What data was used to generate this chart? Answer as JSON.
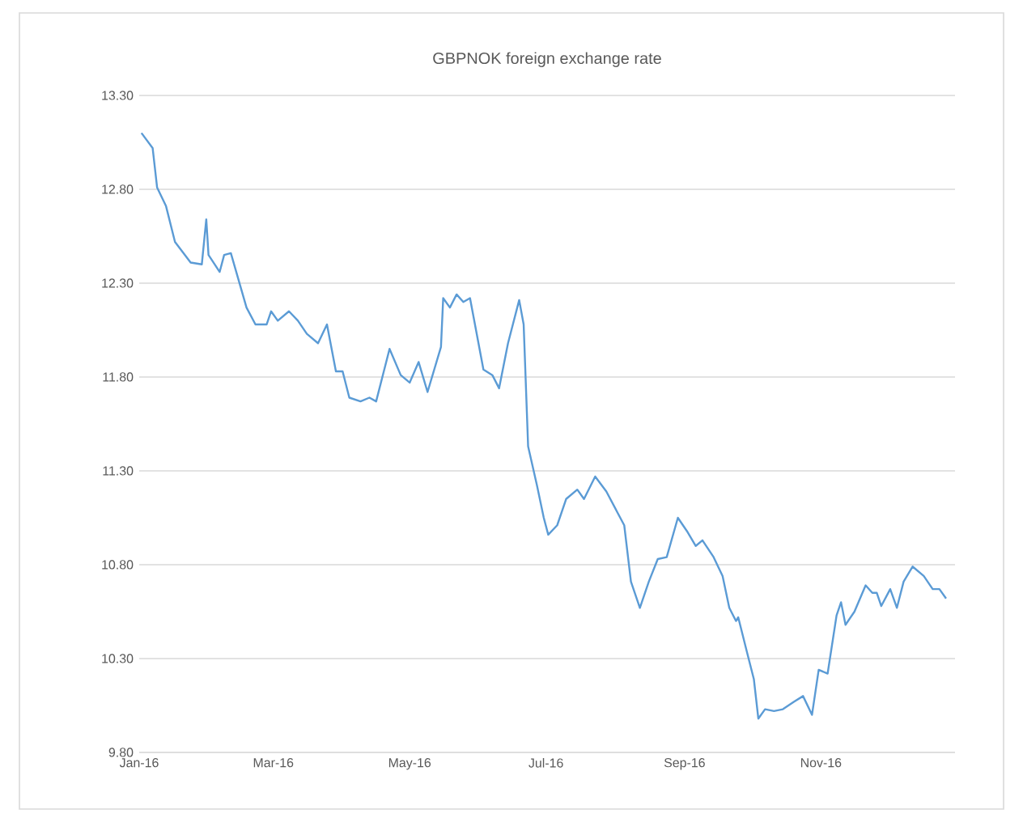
{
  "chart_data": {
    "type": "line",
    "title": "GBPNOK foreign exchange rate",
    "x": [
      "2016-01-02",
      "2016-01-07",
      "2016-01-09",
      "2016-01-13",
      "2016-01-17",
      "2016-01-24",
      "2016-01-29",
      "2016-01-31",
      "2016-02-01",
      "2016-02-06",
      "2016-02-08",
      "2016-02-11",
      "2016-02-18",
      "2016-02-22",
      "2016-02-27",
      "2016-02-29",
      "2016-03-03",
      "2016-03-08",
      "2016-03-12",
      "2016-03-16",
      "2016-03-21",
      "2016-03-25",
      "2016-03-29",
      "2016-04-01",
      "2016-04-04",
      "2016-04-09",
      "2016-04-13",
      "2016-04-16",
      "2016-04-22",
      "2016-04-27",
      "2016-05-01",
      "2016-05-05",
      "2016-05-09",
      "2016-05-15",
      "2016-05-16",
      "2016-05-19",
      "2016-05-22",
      "2016-05-25",
      "2016-05-28",
      "2016-06-03",
      "2016-06-07",
      "2016-06-10",
      "2016-06-14",
      "2016-06-19",
      "2016-06-21",
      "2016-06-23",
      "2016-06-27",
      "2016-06-30",
      "2016-07-02",
      "2016-07-06",
      "2016-07-10",
      "2016-07-15",
      "2016-07-18",
      "2016-07-23",
      "2016-07-28",
      "2016-08-01",
      "2016-08-05",
      "2016-08-08",
      "2016-08-12",
      "2016-08-16",
      "2016-08-20",
      "2016-08-24",
      "2016-08-29",
      "2016-09-02",
      "2016-09-06",
      "2016-09-09",
      "2016-09-14",
      "2016-09-18",
      "2016-09-21",
      "2016-09-24",
      "2016-09-25",
      "2016-09-29",
      "2016-10-02",
      "2016-10-04",
      "2016-10-07",
      "2016-10-11",
      "2016-10-15",
      "2016-10-20",
      "2016-10-24",
      "2016-10-28",
      "2016-10-31",
      "2016-11-04",
      "2016-11-08",
      "2016-11-10",
      "2016-11-12",
      "2016-11-16",
      "2016-11-21",
      "2016-11-24",
      "2016-11-26",
      "2016-11-28",
      "2016-12-02",
      "2016-12-05",
      "2016-12-08",
      "2016-12-12",
      "2016-12-17",
      "2016-12-21",
      "2016-12-24",
      "2016-12-27"
    ],
    "series": [
      {
        "color": "#5b9bd5",
        "values": [
          13.1,
          13.02,
          12.81,
          12.71,
          12.52,
          12.41,
          12.4,
          12.64,
          12.45,
          12.36,
          12.45,
          12.46,
          12.17,
          12.08,
          12.08,
          12.15,
          12.1,
          12.15,
          12.1,
          12.03,
          11.98,
          12.08,
          11.83,
          11.83,
          11.69,
          11.67,
          11.69,
          11.67,
          11.95,
          11.81,
          11.77,
          11.88,
          11.72,
          11.96,
          12.22,
          12.17,
          12.24,
          12.2,
          12.22,
          11.84,
          11.81,
          11.74,
          11.98,
          12.21,
          12.08,
          11.43,
          11.22,
          11.05,
          10.96,
          11.01,
          11.15,
          11.2,
          11.15,
          11.27,
          11.19,
          11.1,
          11.01,
          10.71,
          10.57,
          10.71,
          10.83,
          10.84,
          11.05,
          10.98,
          10.9,
          10.93,
          10.84,
          10.74,
          10.57,
          10.5,
          10.52,
          10.33,
          10.19,
          9.98,
          10.03,
          10.02,
          10.03,
          10.07,
          10.1,
          10.0,
          10.24,
          10.22,
          10.53,
          10.6,
          10.48,
          10.55,
          10.69,
          10.65,
          10.65,
          10.58,
          10.67,
          10.57,
          10.71,
          10.79,
          10.74,
          10.67,
          10.67,
          10.62
        ]
      }
    ],
    "xlim": [
      "2016-01-01",
      "2016-12-31"
    ],
    "xticks": [
      {
        "value": "2016-01-01",
        "label": "Jan-16"
      },
      {
        "value": "2016-03-01",
        "label": "Mar-16"
      },
      {
        "value": "2016-05-01",
        "label": "May-16"
      },
      {
        "value": "2016-07-01",
        "label": "Jul-16"
      },
      {
        "value": "2016-09-01",
        "label": "Sep-16"
      },
      {
        "value": "2016-11-01",
        "label": "Nov-16"
      }
    ],
    "ylim": [
      9.8,
      13.3
    ],
    "yticks": [
      {
        "value": 9.8,
        "label": "9.80"
      },
      {
        "value": 10.3,
        "label": "10.30"
      },
      {
        "value": 10.8,
        "label": "10.80"
      },
      {
        "value": 11.3,
        "label": "11.30"
      },
      {
        "value": 11.8,
        "label": "11.80"
      },
      {
        "value": 12.3,
        "label": "12.30"
      },
      {
        "value": 12.8,
        "label": "12.80"
      },
      {
        "value": 13.3,
        "label": "13.30"
      }
    ],
    "grid": "y",
    "legend": false,
    "marker": "none",
    "line_style": "solid"
  }
}
